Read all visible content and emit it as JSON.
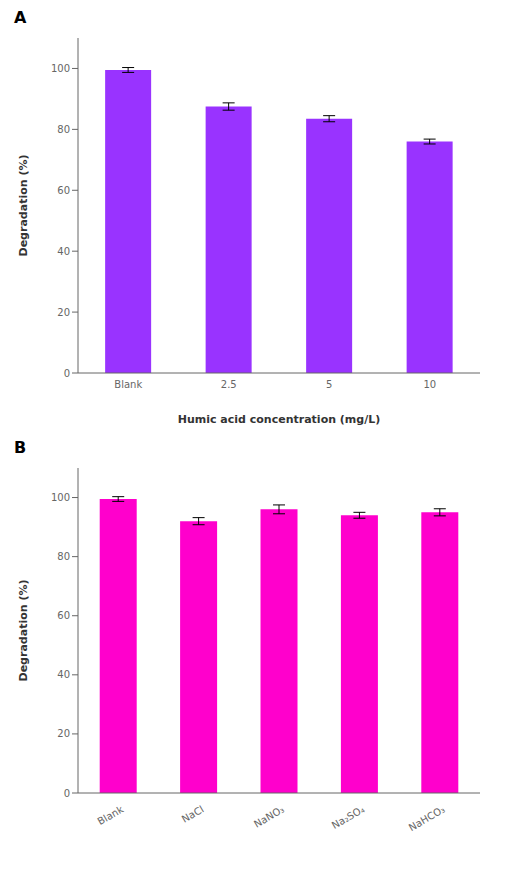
{
  "chart_data": [
    {
      "type": "bar",
      "title": "A",
      "categories": [
        "Blank",
        "2.5",
        "5",
        "10"
      ],
      "values": [
        99.5,
        87.5,
        83.5,
        76.0
      ],
      "errors": [
        0.8,
        1.2,
        1.0,
        0.8
      ],
      "color": "#9933FF",
      "xlabel": "Humic acid concentration (mg/L)",
      "ylabel": "Degradation (%)",
      "ylim": [
        0,
        110
      ],
      "yticks": [
        0,
        20,
        40,
        60,
        80,
        100
      ],
      "grid": false
    },
    {
      "type": "bar",
      "title": "B",
      "categories": [
        "Blank",
        "NaCl",
        "NaNO₃",
        "Na₂SO₄",
        "NaHCO₃"
      ],
      "values": [
        99.5,
        92.0,
        96.0,
        94.0,
        95.0
      ],
      "errors": [
        0.8,
        1.2,
        1.5,
        1.0,
        1.2
      ],
      "color": "#FF00CC",
      "ylabel": "Degradation (%)",
      "ylim": [
        0,
        110
      ],
      "yticks": [
        0,
        20,
        40,
        60,
        80,
        100
      ],
      "grid": false
    }
  ]
}
